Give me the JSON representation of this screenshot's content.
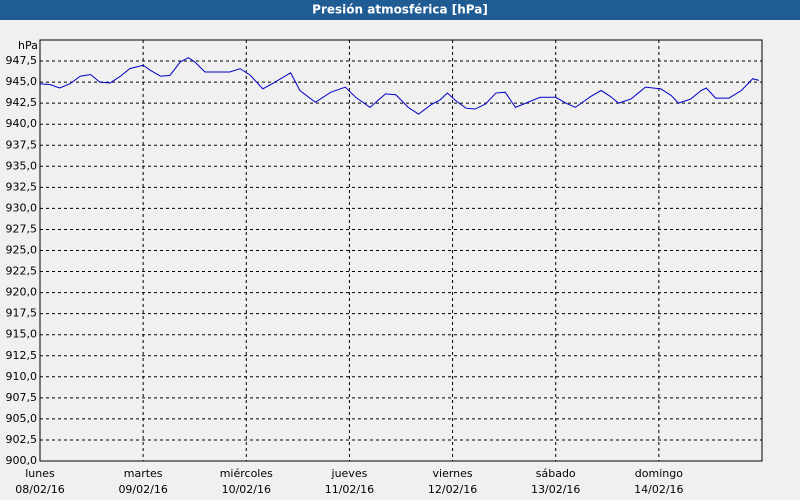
{
  "chart_data": {
    "type": "line",
    "title": "Presión atmosférica [hPa]",
    "ylabel": "hPa",
    "x": [
      0,
      0.1,
      0.19,
      0.29,
      0.39,
      0.49,
      0.58,
      0.68,
      0.78,
      0.87,
      1.0,
      1.07,
      1.17,
      1.26,
      1.36,
      1.44,
      1.5,
      1.6,
      1.7,
      1.84,
      1.94,
      2.04,
      2.16,
      2.25,
      2.43,
      2.52,
      2.67,
      2.82,
      2.96,
      3.06,
      3.2,
      3.35,
      3.45,
      3.57,
      3.67,
      3.79,
      3.88,
      3.95,
      4.03,
      4.13,
      4.22,
      4.32,
      4.42,
      4.51,
      4.61,
      4.71,
      4.85,
      5.0,
      5.1,
      5.19,
      5.34,
      5.44,
      5.53,
      5.61,
      5.73,
      5.87,
      6.02,
      6.12,
      6.19,
      6.31,
      6.41,
      6.46,
      6.55,
      6.68,
      6.8,
      6.91,
      6.97
    ],
    "values": [
      944.8,
      944.7,
      944.3,
      944.8,
      945.7,
      945.9,
      945.0,
      944.9,
      945.7,
      946.6,
      947.0,
      946.4,
      945.7,
      945.8,
      947.4,
      947.9,
      947.4,
      946.2,
      946.2,
      946.2,
      946.6,
      945.8,
      944.2,
      944.8,
      946.1,
      944.0,
      942.6,
      943.8,
      944.4,
      943.2,
      942.0,
      943.6,
      943.5,
      942.0,
      941.2,
      942.3,
      942.9,
      943.7,
      942.8,
      941.9,
      941.8,
      942.4,
      943.7,
      943.8,
      942.0,
      942.5,
      943.2,
      943.2,
      942.5,
      942.0,
      943.3,
      944.0,
      943.3,
      942.5,
      943.0,
      944.4,
      944.2,
      943.4,
      942.5,
      943.0,
      944.0,
      944.3,
      943.1,
      943.1,
      944.0,
      945.4,
      945.2
    ],
    "color": "#0000c8",
    "xlim": [
      0,
      7
    ],
    "xticks": [
      {
        "value": 0,
        "label": "lunes",
        "date": "08/02/16"
      },
      {
        "value": 1,
        "label": "martes",
        "date": "09/02/16"
      },
      {
        "value": 2,
        "label": "miércoles",
        "date": "10/02/16"
      },
      {
        "value": 3,
        "label": "jueves",
        "date": "11/02/16"
      },
      {
        "value": 4,
        "label": "viernes",
        "date": "12/02/16"
      },
      {
        "value": 5,
        "label": "sábado",
        "date": "13/02/16"
      },
      {
        "value": 6,
        "label": "domingo",
        "date": "14/02/16"
      }
    ],
    "ylim": [
      900,
      950
    ],
    "yticks": [
      {
        "value": 900,
        "label": "900,0"
      },
      {
        "value": 902.5,
        "label": "902,5"
      },
      {
        "value": 905,
        "label": "905,0"
      },
      {
        "value": 907.5,
        "label": "907,5"
      },
      {
        "value": 910,
        "label": "910,0"
      },
      {
        "value": 912.5,
        "label": "912,5"
      },
      {
        "value": 915,
        "label": "915,0"
      },
      {
        "value": 917.5,
        "label": "917,5"
      },
      {
        "value": 920,
        "label": "920,0"
      },
      {
        "value": 922.5,
        "label": "922,5"
      },
      {
        "value": 925,
        "label": "925,0"
      },
      {
        "value": 927.5,
        "label": "927,5"
      },
      {
        "value": 930,
        "label": "930,0"
      },
      {
        "value": 932.5,
        "label": "932,5"
      },
      {
        "value": 935,
        "label": "935,0"
      },
      {
        "value": 937.5,
        "label": "937,5"
      },
      {
        "value": 940,
        "label": "940,0"
      },
      {
        "value": 942.5,
        "label": "942,5"
      },
      {
        "value": 945,
        "label": "945,0"
      },
      {
        "value": 947.5,
        "label": "947,5"
      }
    ],
    "grid": true
  }
}
